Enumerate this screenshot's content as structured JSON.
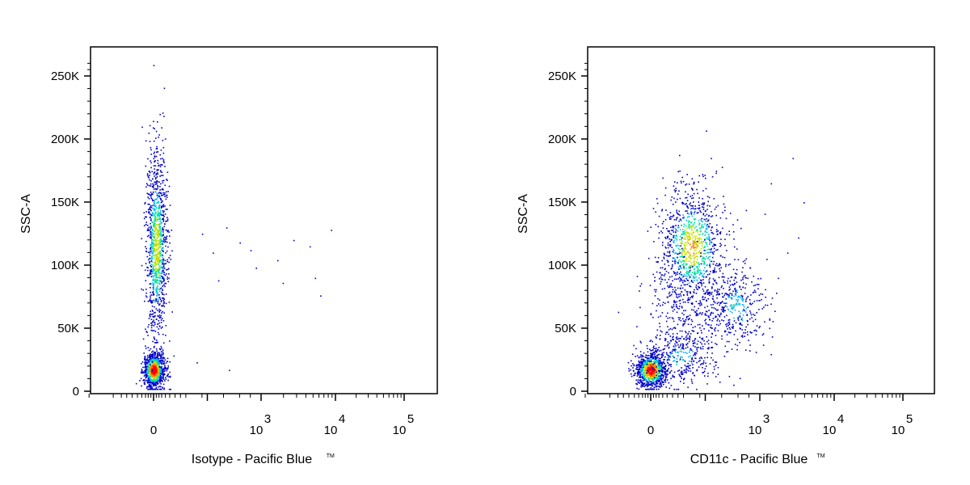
{
  "chart_data": [
    {
      "type": "scatter",
      "xlabel": "Isotype - Pacific Blue",
      "xlabel_suffix": "TM",
      "ylabel": "SSC-A",
      "x_scale": "biexponential",
      "x_ticks": [
        {
          "base": "0",
          "exp": ""
        },
        {
          "base": "10",
          "exp": "3"
        },
        {
          "base": "10",
          "exp": "4"
        },
        {
          "base": "10",
          "exp": "5"
        }
      ],
      "y_ticks": [
        "0",
        "50K",
        "100K",
        "150K",
        "200K",
        "250K"
      ],
      "ylim": [
        0,
        262144
      ],
      "color_scale": [
        "#0000c8",
        "#00b0ff",
        "#00e0a0",
        "#c8e000",
        "#ff8000",
        "#ff0000"
      ],
      "populations": [
        {
          "x_center": 0,
          "y_center": 17000,
          "x_spread": 0.1,
          "y_spread": 7000,
          "count": 1000,
          "peak": 1.0
        },
        {
          "x_center": 0.05,
          "y_center": 115000,
          "x_spread": 0.1,
          "y_spread": 38000,
          "count": 1100,
          "peak": 0.6
        }
      ],
      "outliers": [
        [
          0.9,
          125000
        ],
        [
          1.1,
          110000
        ],
        [
          1.35,
          130000
        ],
        [
          1.6,
          118000
        ],
        [
          1.8,
          112000
        ],
        [
          1.9,
          98000
        ],
        [
          2.3,
          104000
        ],
        [
          2.9,
          115000
        ],
        [
          3.3,
          128000
        ],
        [
          2.6,
          120000
        ],
        [
          3.0,
          90000
        ],
        [
          2.4,
          86000
        ],
        [
          3.1,
          76000
        ],
        [
          1.2,
          88000
        ],
        [
          0.8,
          23000
        ],
        [
          1.4,
          17000
        ]
      ]
    },
    {
      "type": "scatter",
      "xlabel": "CD11c - Pacific Blue",
      "xlabel_suffix": "TM",
      "ylabel": "SSC-A",
      "x_scale": "biexponential",
      "x_ticks": [
        {
          "base": "0",
          "exp": ""
        },
        {
          "base": "10",
          "exp": "3"
        },
        {
          "base": "10",
          "exp": "4"
        },
        {
          "base": "10",
          "exp": "5"
        }
      ],
      "y_ticks": [
        "0",
        "50K",
        "100K",
        "150K",
        "200K",
        "250K"
      ],
      "ylim": [
        0,
        262144
      ],
      "color_scale": [
        "#0000c8",
        "#00b0ff",
        "#00e0a0",
        "#c8e000",
        "#ff8000",
        "#ff0000"
      ],
      "populations": [
        {
          "x_center": 0,
          "y_center": 17000,
          "x_spread": 0.14,
          "y_spread": 7000,
          "count": 900,
          "peak": 1.0
        },
        {
          "x_center": 0.75,
          "y_center": 115000,
          "x_spread": 0.3,
          "y_spread": 24000,
          "count": 1000,
          "peak": 0.65
        },
        {
          "x_center": 1.55,
          "y_center": 68000,
          "x_spread": 0.28,
          "y_spread": 17000,
          "count": 350,
          "peak": 0.3
        },
        {
          "x_center": 0.55,
          "y_center": 28000,
          "x_spread": 0.3,
          "y_spread": 10000,
          "count": 280,
          "peak": 0.3
        },
        {
          "x_center": 0.65,
          "y_center": 60000,
          "x_spread": 0.45,
          "y_spread": 28000,
          "count": 380,
          "peak": 0.15
        }
      ],
      "outliers": [
        [
          -0.6,
          63000
        ],
        [
          -0.2,
          40000
        ],
        [
          0.1,
          95000
        ],
        [
          2.5,
          110000
        ],
        [
          2.8,
          150000
        ],
        [
          2.2,
          165000
        ],
        [
          2.6,
          185000
        ],
        [
          1.1,
          185000
        ],
        [
          1.3,
          178000
        ],
        [
          2.7,
          122000
        ]
      ]
    }
  ]
}
